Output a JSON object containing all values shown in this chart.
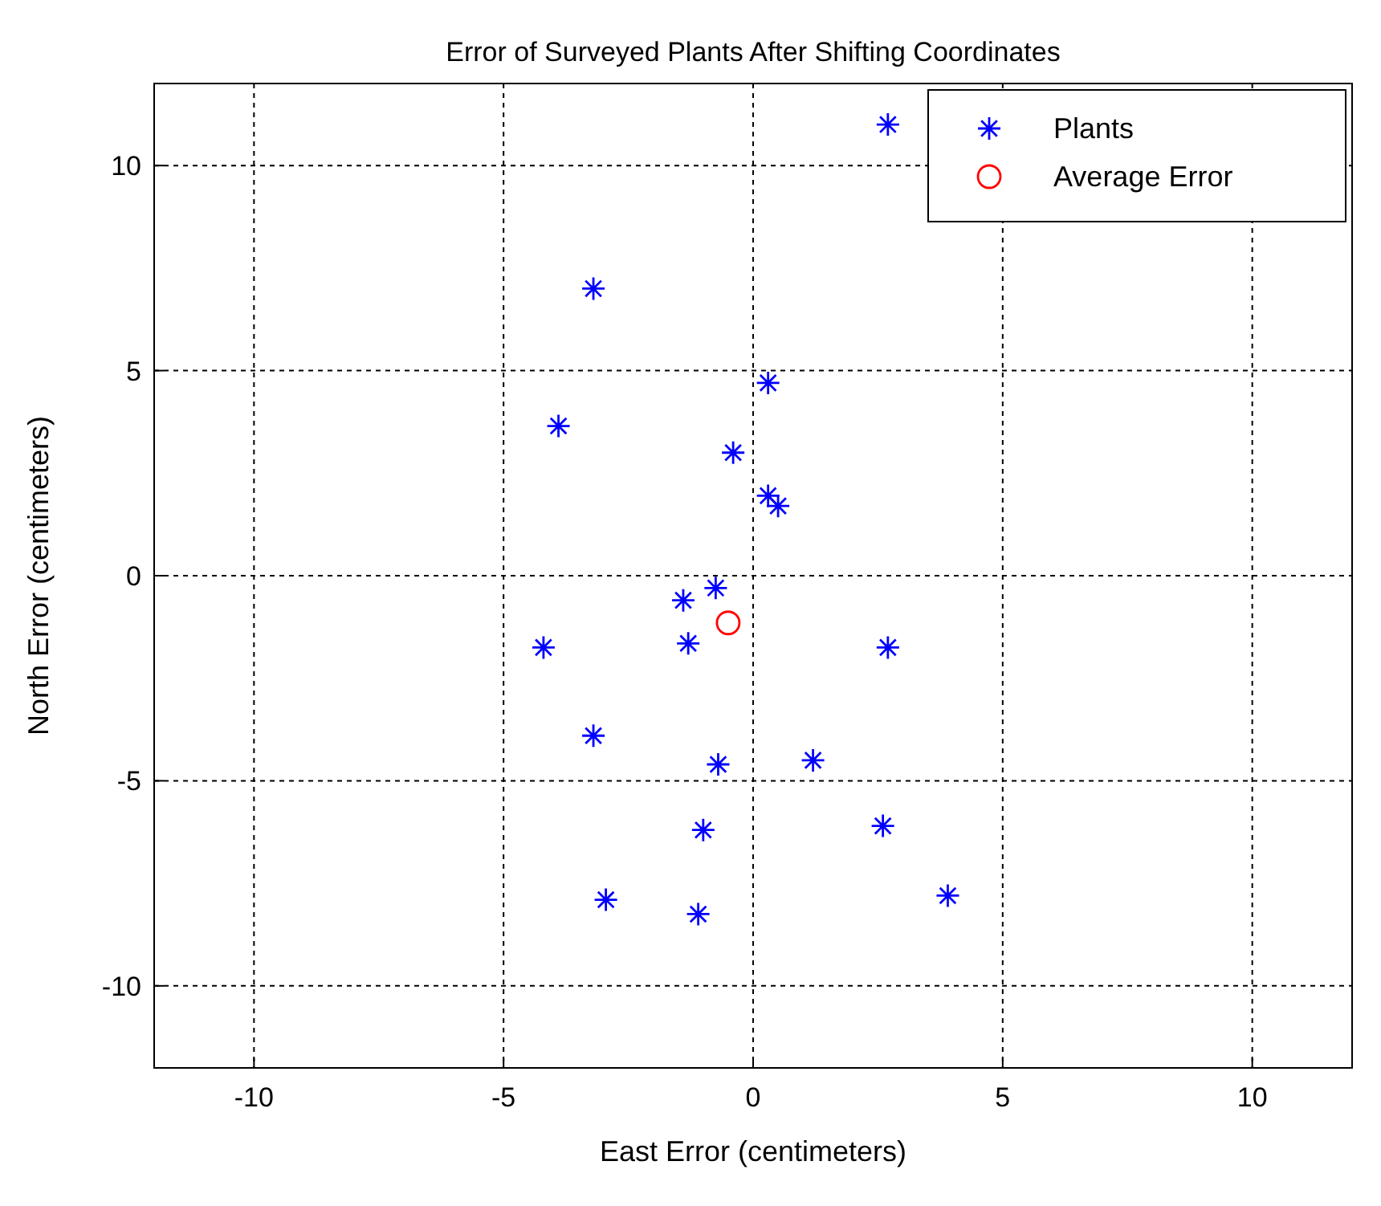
{
  "chart_data": {
    "type": "scatter",
    "title": "Error of Surveyed Plants After Shifting Coordinates",
    "xlabel": "East Error (centimeters)",
    "ylabel": "North Error (centimeters)",
    "xlim": [
      -12,
      12
    ],
    "ylim": [
      -12,
      12
    ],
    "xticks": [
      -10,
      -5,
      0,
      5,
      10
    ],
    "yticks": [
      -10,
      -5,
      0,
      5,
      10
    ],
    "grid": true,
    "legend": "top right",
    "series": [
      {
        "name": "Plants",
        "color": "#0000ff",
        "marker": "cross",
        "x": [
          2.7,
          -3.2,
          0.3,
          -3.9,
          -0.4,
          0.3,
          0.5,
          -0.75,
          -1.4,
          -4.2,
          -1.3,
          2.7,
          -3.2,
          -0.7,
          1.2,
          2.6,
          -1.0,
          -2.95,
          -1.1,
          3.9
        ],
        "values": [
          11.0,
          7.0,
          4.7,
          3.65,
          3.0,
          1.95,
          1.7,
          -0.3,
          -0.6,
          -1.75,
          -1.65,
          -1.75,
          -3.9,
          -4.6,
          -4.5,
          -6.1,
          -6.2,
          -7.9,
          -8.25,
          -7.8
        ]
      },
      {
        "name": "Average Error",
        "color": "#ff0000",
        "marker": "circle",
        "x": [
          -0.5
        ],
        "values": [
          -1.15
        ]
      }
    ]
  }
}
